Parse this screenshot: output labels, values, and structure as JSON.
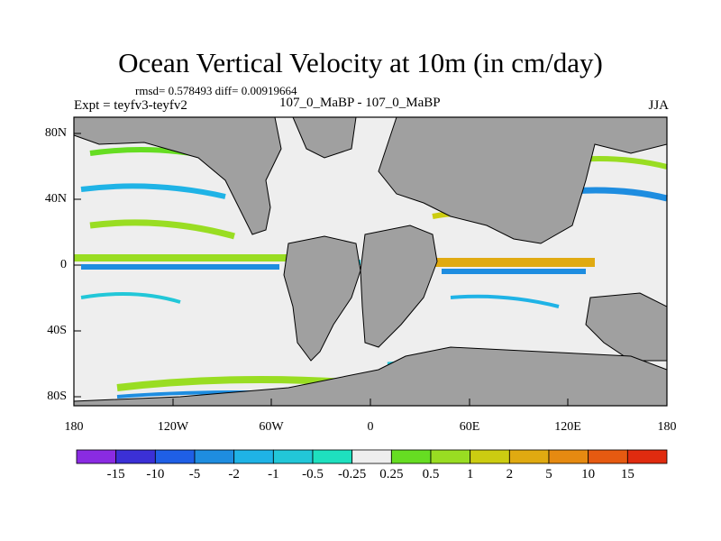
{
  "title": "Ocean Vertical Velocity at 10m (in cm/day)",
  "stats": "rmsd= 0.578493 diff= 0.00919664",
  "expt": "Expt = teyfv3-teyfv2",
  "center_label": "107_0_MaBP - 107_0_MaBP",
  "season": "JJA",
  "lat_ticks": [
    "80N",
    "40N",
    "0",
    "40S",
    "80S"
  ],
  "lon_ticks": [
    "180",
    "120W",
    "60W",
    "0",
    "60E",
    "120E",
    "180"
  ],
  "colorbar": {
    "labels": [
      "-15",
      "-10",
      "-5",
      "-2",
      "-1",
      "-0.5",
      "-0.25",
      "0.25",
      "0.5",
      "1",
      "2",
      "5",
      "10",
      "15"
    ],
    "colors": [
      "#8a2be2",
      "#3b30d6",
      "#1f5fe6",
      "#1e8de0",
      "#1fb3e6",
      "#22c7d8",
      "#1ee0bf",
      "#eeeeee",
      "#66dd22",
      "#99dd22",
      "#cccc11",
      "#e0aa11",
      "#e68a11",
      "#e65a11",
      "#e02b0f"
    ]
  },
  "land_color": "#a0a0a0",
  "ocean_bg": "#eeeeee"
}
